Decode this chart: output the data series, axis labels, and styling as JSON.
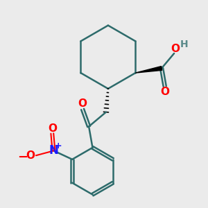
{
  "bg_color": "#ebebeb",
  "bond_color": "#2d6b6b",
  "bond_width": 1.8,
  "o_color": "#ff0000",
  "n_color": "#1a1aff",
  "h_color": "#5a8a8a",
  "black_color": "#000000",
  "fig_width": 3.0,
  "fig_height": 3.0,
  "dpi": 100,
  "xlim": [
    0,
    10
  ],
  "ylim": [
    0,
    10
  ]
}
